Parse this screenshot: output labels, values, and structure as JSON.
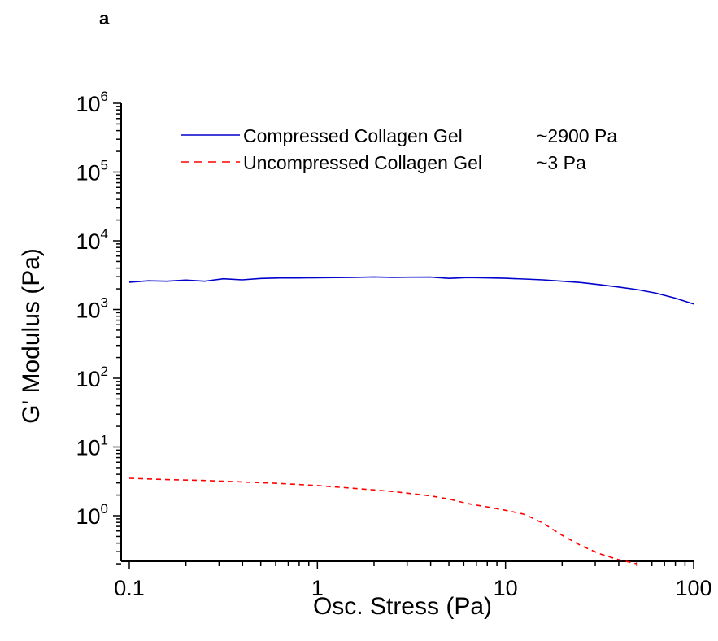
{
  "panel_label": "a",
  "chart_data": {
    "type": "line",
    "xlabel": "Osc. Stress (Pa)",
    "ylabel": "G' Modulus (Pa)",
    "x_scale": "log",
    "y_scale": "log",
    "xlim": [
      0.1,
      100
    ],
    "ylim": [
      0.2,
      1000000
    ],
    "grid": false,
    "legend_position": "top",
    "x_ticks": [
      {
        "value": 0.1,
        "label": "0.1"
      },
      {
        "value": 1,
        "label": "1"
      },
      {
        "value": 10,
        "label": "10"
      },
      {
        "value": 100,
        "label": "100"
      }
    ],
    "y_ticks": [
      {
        "value": 1,
        "base": "10",
        "exp": "0"
      },
      {
        "value": 10,
        "base": "10",
        "exp": "1"
      },
      {
        "value": 100,
        "base": "10",
        "exp": "2"
      },
      {
        "value": 1000,
        "base": "10",
        "exp": "3"
      },
      {
        "value": 10000,
        "base": "10",
        "exp": "4"
      },
      {
        "value": 100000,
        "base": "10",
        "exp": "5"
      },
      {
        "value": 1000000,
        "base": "10",
        "exp": "6"
      }
    ],
    "series": [
      {
        "name": "Compressed Collagen Gel",
        "annotation": "~2900 Pa",
        "color": "#0000cc",
        "dash": "solid",
        "x": [
          0.1,
          0.126,
          0.158,
          0.2,
          0.251,
          0.316,
          0.398,
          0.5,
          0.631,
          0.794,
          1,
          1.26,
          1.58,
          2,
          2.51,
          3.16,
          3.98,
          5.01,
          6.31,
          7.94,
          10,
          12.6,
          15.8,
          20,
          25.1,
          31.6,
          39.8,
          50.1,
          63.1,
          79.4,
          100
        ],
        "y": [
          2500,
          2620,
          2580,
          2680,
          2580,
          2800,
          2700,
          2830,
          2880,
          2880,
          2900,
          2920,
          2940,
          2980,
          2940,
          2960,
          2970,
          2840,
          2920,
          2890,
          2850,
          2780,
          2700,
          2580,
          2470,
          2300,
          2130,
          1950,
          1730,
          1470,
          1200
        ]
      },
      {
        "name": "Uncompressed Collagen Gel",
        "annotation": "~3 Pa",
        "color": "#ff0000",
        "dash": "dashed",
        "x": [
          0.1,
          0.158,
          0.251,
          0.398,
          0.631,
          1,
          1.58,
          2.51,
          3.98,
          5.01,
          6.31,
          7.94,
          10,
          12.6,
          15.8,
          20,
          25.1,
          31.6,
          39.8,
          50
        ],
        "y": [
          3.5,
          3.35,
          3.25,
          3.1,
          2.95,
          2.75,
          2.5,
          2.25,
          1.95,
          1.75,
          1.5,
          1.35,
          1.2,
          1.05,
          0.78,
          0.52,
          0.37,
          0.28,
          0.23,
          0.2
        ]
      }
    ]
  }
}
